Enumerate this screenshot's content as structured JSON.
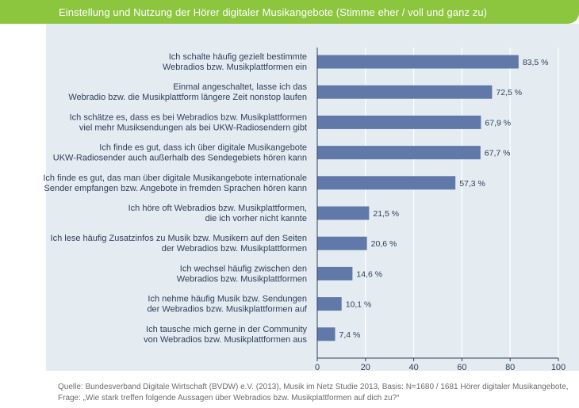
{
  "header": {
    "title": "Einstellung und Nutzung der Hörer digitaler Musikangebote (Stimme eher / voll und ganz zu)"
  },
  "footer": {
    "source_line1": "Quelle: Bundesverband Digitale Wirtschaft (BVDW) e.V. (2013), Musik im Netz Studie 2013, Basis: N=1680 / 1681 Hörer digitaler Musikangebote,",
    "source_line2": "Frage: „Wie stark treffen folgende Aussagen über Webradios bzw. Musikplattformen auf dich zu?“"
  },
  "colors": {
    "header_bg": "#8cc63f",
    "panel_bg": "#e4ecf2",
    "bar": "#6179a8",
    "text": "#2f3e59",
    "grid": "#ffffff"
  },
  "chart_data": {
    "type": "bar",
    "orientation": "horizontal",
    "categories": [
      [
        "Ich schalte häufig gezielt bestimmte",
        "Webradios bzw. Musikplattformen ein"
      ],
      [
        "Einmal angeschaltet, lasse ich das",
        "Webradio bzw. die Musikplattform längere Zeit nonstop laufen"
      ],
      [
        "Ich schätze es, dass es bei Webradios bzw. Musikplattformen",
        "viel mehr Musiksendungen als bei UKW-Radiosendern gibt"
      ],
      [
        "Ich finde es gut, dass ich über digitale Musikangebote",
        "UKW-Radiosender auch außerhalb des Sendegebiets hören kann"
      ],
      [
        "Ich finde es gut, das man über digitale Musikangebote internationale",
        "Sender empfangen bzw. Angebote in fremden Sprachen hören kann"
      ],
      [
        "Ich höre oft Webradios bzw. Musikplattformen,",
        "die ich vorher nicht kannte"
      ],
      [
        "Ich lese häufig Zusatzinfos zu Musik bzw. Musikern auf den Seiten",
        "der Webradios bzw. Musikplattformen"
      ],
      [
        "Ich wechsel häufig zwischen den",
        "Webradios bzw. Musikplattformen"
      ],
      [
        "Ich nehme häufig Musik bzw. Sendungen",
        "der Webradios bzw. Musikplattformen auf"
      ],
      [
        "Ich tausche mich gerne in der Community",
        "von Webradios bzw. Musikplattformen aus"
      ]
    ],
    "values": [
      83.5,
      72.5,
      67.9,
      67.7,
      57.3,
      21.5,
      20.6,
      14.6,
      10.1,
      7.4
    ],
    "value_labels": [
      "83,5 %",
      "72,5 %",
      "67,9 %",
      "67,7 %",
      "57,3 %",
      "21,5 %",
      "20,6 %",
      "14,6 %",
      "10,1 %",
      "7,4 %"
    ],
    "xlim": [
      0,
      100
    ],
    "xticks": [
      0,
      20,
      40,
      60,
      80,
      100
    ],
    "grid": true,
    "title": "Einstellung und Nutzung der Hörer digitaler Musikangebote (Stimme eher / voll und ganz zu)",
    "xlabel": "",
    "ylabel": ""
  }
}
